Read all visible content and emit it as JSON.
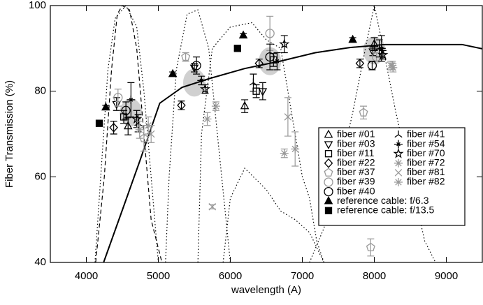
{
  "chart_data": {
    "type": "errorscatter",
    "xlabel": "wavelength (A)",
    "ylabel": "Fiber Transmission (%)",
    "xlim": [
      3500,
      9500
    ],
    "ylim": [
      40,
      100
    ],
    "xticks": [
      4000,
      5000,
      6000,
      7000,
      8000,
      9000
    ],
    "yticks": [
      40,
      60,
      80,
      100
    ],
    "highlights": {
      "color": "#d0d0d0",
      "x": [
        4620,
        5500,
        6550,
        8000
      ],
      "values": [
        75,
        82,
        87,
        89.5
      ]
    },
    "curves": [
      {
        "style": "solid",
        "color": "#000000",
        "x": [
          4240,
          4510,
          4745,
          5020,
          5330,
          5720,
          6200,
          6690,
          7180,
          7660,
          8150,
          8640,
          9220,
          9500
        ],
        "values": [
          40,
          52.7,
          63.8,
          77.2,
          80.9,
          83,
          85.3,
          87,
          89,
          90.2,
          90.9,
          90.9,
          90.9,
          89.9
        ]
      },
      {
        "style": "dashed",
        "color": "#000000",
        "x": [
          4130,
          4250,
          4350,
          4430,
          4500,
          4600,
          4700,
          4800,
          4900,
          5050
        ],
        "values": [
          40,
          60,
          85,
          98,
          100,
          99,
          90,
          70,
          50,
          40
        ]
      },
      {
        "style": "dotted",
        "color": "#000000",
        "x": [
          4120,
          4200,
          4300,
          4400,
          4550,
          4700,
          4800,
          4900,
          5000
        ],
        "values": [
          40,
          60,
          85,
          97,
          100,
          95,
          80,
          60,
          40
        ]
      },
      {
        "style": "dotted",
        "color": "#000000",
        "x": [
          5100,
          5150,
          5250,
          5400,
          5550,
          5700,
          5850,
          6000
        ],
        "values": [
          40,
          60,
          85,
          98,
          99,
          90,
          65,
          40
        ]
      },
      {
        "style": "dotted",
        "color": "#000000",
        "x": [
          5550,
          5600,
          5750,
          6000,
          6300,
          6500,
          6700,
          6900,
          7000,
          7100,
          7200,
          7300
        ],
        "values": [
          40,
          70,
          90,
          95,
          96,
          92,
          90,
          70,
          60,
          55,
          45,
          40
        ]
      },
      {
        "style": "dotted",
        "color": "#000000",
        "x": [
          5900,
          6000,
          6200,
          6500,
          6700,
          6900,
          7100,
          7300
        ],
        "values": [
          40,
          55,
          62,
          57,
          52,
          50,
          47,
          40
        ]
      },
      {
        "style": "dotted",
        "color": "#000000",
        "x": [
          7100,
          7300,
          7500,
          7700,
          7900,
          8000,
          8100,
          8300,
          8500,
          8700,
          8850
        ],
        "values": [
          40,
          48,
          60,
          75,
          92,
          100,
          92,
          75,
          60,
          45,
          40
        ]
      }
    ],
    "series": [
      {
        "name": "fiber #01",
        "marker": "triangle-up",
        "color": "#000000",
        "x": [
          4580,
          6200,
          8000
        ],
        "values": [
          71.8,
          76.5,
          91
        ],
        "errors": [
          2,
          1.5,
          1.5
        ]
      },
      {
        "name": "fiber #03",
        "marker": "triangle-down",
        "color": "#000000",
        "x": [
          4420,
          5500,
          6450,
          7980
        ],
        "values": [
          77,
          85.5,
          80,
          89.3
        ],
        "errors": [
          1.5,
          1,
          2,
          1
        ]
      },
      {
        "name": "fiber #11",
        "marker": "square",
        "color": "#000000",
        "x": [
          4520,
          6360,
          6600
        ],
        "values": [
          74,
          80,
          87.3
        ],
        "errors": [
          1.5,
          1.5,
          1.5
        ]
      },
      {
        "name": "fiber #22",
        "marker": "diamond",
        "color": "#000000",
        "x": [
          4380,
          5320,
          6400,
          7800
        ],
        "values": [
          71.5,
          76.7,
          86.5,
          86.5
        ],
        "errors": [
          1.5,
          1,
          1,
          1
        ]
      },
      {
        "name": "fiber #37",
        "marker": "pentagon",
        "color": "#999999",
        "x": [
          4800,
          5380,
          7850,
          7950
        ],
        "values": [
          69,
          88,
          75,
          43.5
        ],
        "errors": [
          3,
          1,
          1.5,
          2
        ]
      },
      {
        "name": "fiber #39",
        "marker": "circle",
        "color": "#999999",
        "x": [
          4440,
          6550,
          8030
        ],
        "values": [
          78.5,
          93.5,
          88
        ],
        "errors": [
          2,
          4,
          1
        ]
      },
      {
        "name": "fiber #40",
        "marker": "circle",
        "color": "#000000",
        "x": [
          4550,
          5530,
          6550,
          7970
        ],
        "values": [
          75.5,
          86,
          88,
          86
        ],
        "errors": [
          2,
          2,
          3,
          1
        ]
      },
      {
        "name": "fiber #41",
        "marker": "tri",
        "color": "#000000",
        "x": [
          4720,
          6320,
          8070
        ],
        "values": [
          72.5,
          82,
          90
        ],
        "errors": [
          2,
          2,
          2
        ]
      },
      {
        "name": "fiber #54",
        "marker": "plus-star",
        "color": "#000000",
        "x": [
          4620,
          5600,
          6650,
          8100
        ],
        "values": [
          78,
          82.5,
          87,
          90
        ],
        "errors": [
          4,
          1,
          2,
          3
        ]
      },
      {
        "name": "fiber #70",
        "marker": "star",
        "color": "#000000",
        "x": [
          4700,
          5650,
          6750,
          8120
        ],
        "values": [
          73.5,
          80.5,
          91,
          88.5
        ],
        "errors": [
          2,
          1,
          2,
          1
        ]
      },
      {
        "name": "fiber #72",
        "marker": "asterisk",
        "color": "#999999",
        "x": [
          4860,
          5800,
          6750,
          8250
        ],
        "values": [
          72,
          76.5,
          65.5,
          86
        ],
        "errors": [
          2,
          1,
          1,
          1
        ]
      },
      {
        "name": "fiber #81",
        "marker": "x",
        "color": "#999999",
        "x": [
          4900,
          5750,
          6800,
          8230
        ],
        "values": [
          70,
          53,
          74,
          86
        ],
        "errors": [
          2,
          0.5,
          4.5,
          1
        ]
      },
      {
        "name": "fiber #82",
        "marker": "asterisk",
        "color": "#999999",
        "x": [
          4740,
          5680,
          6900,
          8260
        ],
        "values": [
          71,
          73.5,
          66.5,
          85.5
        ],
        "errors": [
          2,
          1.5,
          4,
          1
        ]
      },
      {
        "name": "reference cable: f/6.3",
        "marker": "triangle-up-filled",
        "color": "#000000",
        "x": [
          4270,
          5200,
          6180,
          7700
        ],
        "values": [
          76.2,
          84,
          93,
          92
        ],
        "errors": [
          0.5,
          0.5,
          0.5,
          0.5
        ]
      },
      {
        "name": "reference cable: f/13.5",
        "marker": "square-filled",
        "color": "#000000",
        "x": [
          4180,
          6100
        ],
        "values": [
          72.5,
          90
        ],
        "errors": [
          0.5,
          0.5
        ]
      }
    ]
  }
}
